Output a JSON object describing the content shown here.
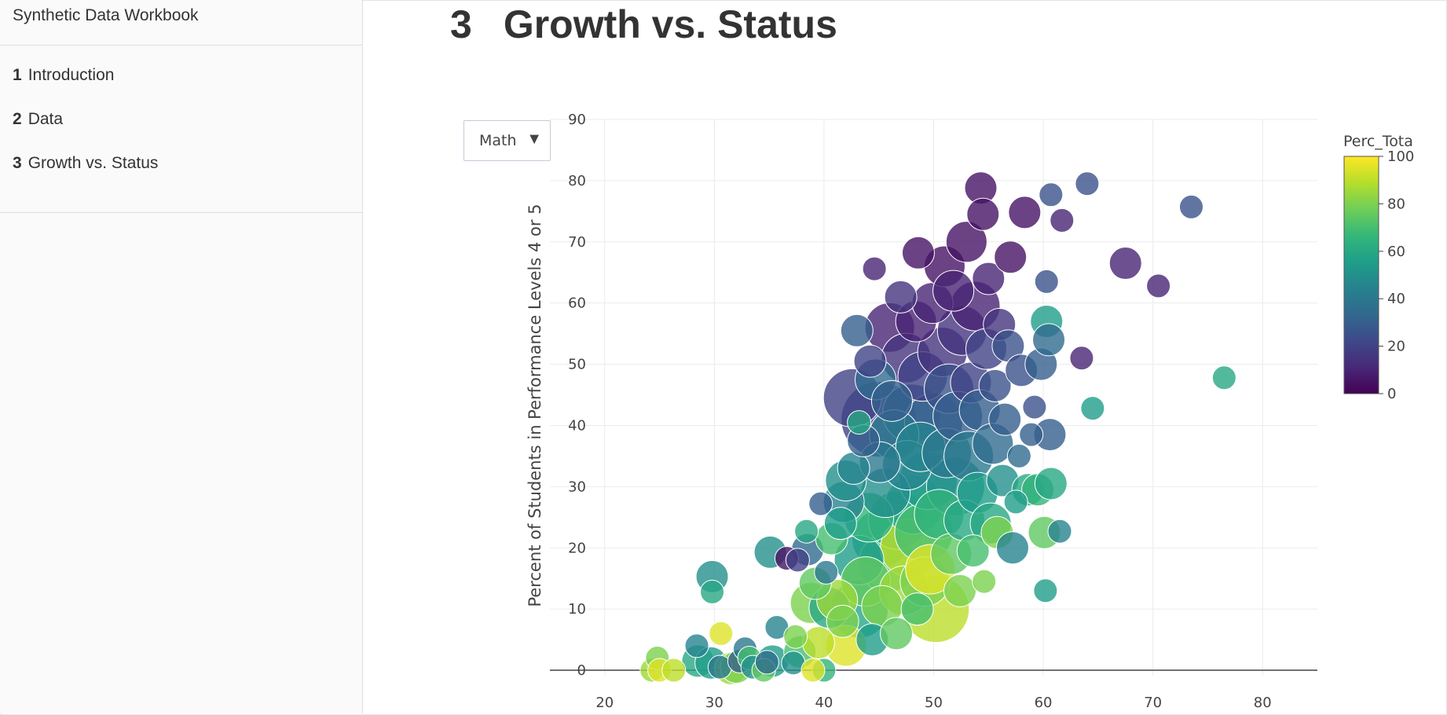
{
  "sidebar": {
    "title": "Synthetic Data Workbook",
    "items": [
      {
        "num": "1",
        "label": "Introduction"
      },
      {
        "num": "2",
        "label": "Data"
      },
      {
        "num": "3",
        "label": "Growth vs. Status"
      }
    ]
  },
  "page": {
    "number": "3",
    "title": "Growth vs. Status"
  },
  "dropdown": {
    "selected": "Math",
    "arrow": "▼"
  },
  "chart_data": {
    "type": "scatter",
    "title": "",
    "xlabel": "",
    "ylabel": "Percent of Students in Performance Levels 4 or 5",
    "xlim": [
      15,
      85
    ],
    "ylim": [
      -5,
      90
    ],
    "xticks": [
      20,
      30,
      40,
      50,
      60,
      70,
      80
    ],
    "yticks": [
      0,
      10,
      20,
      30,
      40,
      50,
      60,
      70,
      80,
      90
    ],
    "grid": true,
    "colorbar": {
      "title": "Perc_Tota",
      "range": [
        0,
        100
      ],
      "ticks": [
        0,
        20,
        40,
        60,
        80,
        100
      ],
      "colorscale": "Viridis"
    },
    "colorscale_stops": [
      "#440154",
      "#482878",
      "#3e4989",
      "#31688e",
      "#26828e",
      "#1f9e89",
      "#35b779",
      "#6ece58",
      "#b5de2b",
      "#fde725"
    ],
    "points": [
      [
        24.3,
        0,
        85,
        2
      ],
      [
        24.8,
        2,
        80,
        2
      ],
      [
        25,
        0,
        95,
        2
      ],
      [
        26.3,
        0,
        90,
        2
      ],
      [
        28.4,
        4,
        45,
        2
      ],
      [
        28.5,
        1.5,
        60,
        3
      ],
      [
        29.7,
        1.2,
        55,
        3
      ],
      [
        29.8,
        15.3,
        50,
        3
      ],
      [
        29.8,
        12.8,
        60,
        2
      ],
      [
        30.5,
        0.5,
        40,
        2
      ],
      [
        30.6,
        6,
        95,
        2
      ],
      [
        31.5,
        0.3,
        85,
        3
      ],
      [
        32,
        0.5,
        80,
        3
      ],
      [
        32.3,
        1.5,
        30,
        2
      ],
      [
        32.8,
        3.5,
        40,
        2
      ],
      [
        33.2,
        2,
        70,
        2
      ],
      [
        33.5,
        0.5,
        50,
        2
      ],
      [
        34.5,
        0,
        75,
        2
      ],
      [
        34.8,
        1.3,
        35,
        2
      ],
      [
        35.3,
        1.5,
        55,
        3
      ],
      [
        35.1,
        19.3,
        50,
        3
      ],
      [
        35.7,
        7,
        45,
        2
      ],
      [
        36.6,
        18.3,
        5,
        2
      ],
      [
        37.2,
        1.2,
        50,
        2
      ],
      [
        37.4,
        5.5,
        80,
        2
      ],
      [
        37.6,
        18,
        20,
        2
      ],
      [
        37.8,
        3,
        70,
        3
      ],
      [
        38.4,
        22.7,
        60,
        2
      ],
      [
        38.5,
        19.7,
        35,
        3
      ],
      [
        38.8,
        11,
        80,
        4
      ],
      [
        39.2,
        14.2,
        75,
        3
      ],
      [
        39.5,
        4.5,
        90,
        3
      ],
      [
        39.7,
        27.2,
        30,
        2
      ],
      [
        40,
        0,
        65,
        2
      ],
      [
        39,
        0,
        95,
        2
      ],
      [
        40.2,
        16,
        40,
        2
      ],
      [
        40.5,
        10.2,
        60,
        4
      ],
      [
        40.7,
        21.5,
        70,
        3
      ],
      [
        41.2,
        11.5,
        85,
        4
      ],
      [
        41.5,
        24,
        55,
        3
      ],
      [
        41.7,
        8,
        80,
        3
      ],
      [
        42.0,
        4,
        95,
        4
      ],
      [
        41.8,
        27.5,
        45,
        4
      ],
      [
        42,
        31,
        50,
        4
      ],
      [
        42.6,
        44.5,
        20,
        6
      ],
      [
        42.7,
        33,
        45,
        3
      ],
      [
        43,
        55.5,
        30,
        3
      ],
      [
        43.2,
        40.5,
        60,
        2
      ],
      [
        43.2,
        18,
        55,
        5
      ],
      [
        43.2,
        10,
        60,
        6
      ],
      [
        43.6,
        37.5,
        30,
        3
      ],
      [
        43.8,
        14.5,
        75,
        5
      ],
      [
        44.1,
        25,
        65,
        5
      ],
      [
        44.2,
        50.5,
        20,
        3
      ],
      [
        44.4,
        5,
        55,
        3
      ],
      [
        44.6,
        65.6,
        10,
        2
      ],
      [
        44.7,
        47.5,
        35,
        4
      ],
      [
        45.0,
        41,
        20,
        8
      ],
      [
        45.1,
        34,
        40,
        4
      ],
      [
        45.2,
        21.5,
        60,
        6
      ],
      [
        45.3,
        10.5,
        80,
        4
      ],
      [
        45.6,
        29,
        50,
        5
      ],
      [
        45.8,
        17.5,
        70,
        6
      ],
      [
        46.0,
        56,
        10,
        5
      ],
      [
        46.2,
        44,
        30,
        4
      ],
      [
        46.4,
        38.5,
        40,
        5
      ],
      [
        46.6,
        6,
        75,
        3
      ],
      [
        46.7,
        24.5,
        60,
        6
      ],
      [
        47.0,
        61,
        15,
        3
      ],
      [
        47.3,
        13,
        85,
        5
      ],
      [
        47.5,
        51,
        15,
        5
      ],
      [
        47.6,
        33.5,
        45,
        5
      ],
      [
        47.8,
        20,
        90,
        6
      ],
      [
        48.0,
        42,
        35,
        6
      ],
      [
        48.2,
        27,
        60,
        6
      ],
      [
        48.4,
        57,
        10,
        4
      ],
      [
        48.5,
        10,
        70,
        3
      ],
      [
        48.6,
        68.2,
        5,
        3
      ],
      [
        48.8,
        36.5,
        45,
        5
      ],
      [
        49.0,
        48,
        20,
        5
      ],
      [
        49.1,
        22.5,
        70,
        6
      ],
      [
        49.2,
        14.5,
        80,
        5
      ],
      [
        49.5,
        31,
        55,
        6
      ],
      [
        49.7,
        16.5,
        95,
        5
      ],
      [
        49.9,
        60,
        10,
        4
      ],
      [
        50.0,
        40.5,
        30,
        6
      ],
      [
        50.2,
        10,
        90,
        7
      ],
      [
        50.5,
        25.5,
        65,
        5
      ],
      [
        50.8,
        52,
        15,
        5
      ],
      [
        51.0,
        66,
        5,
        4
      ],
      [
        51.2,
        35.5,
        40,
        5
      ],
      [
        51.4,
        46,
        25,
        5
      ],
      [
        51.6,
        19,
        75,
        4
      ],
      [
        51.8,
        62,
        10,
        4
      ],
      [
        52.0,
        30,
        50,
        6
      ],
      [
        52.2,
        41.5,
        30,
        5
      ],
      [
        52.4,
        13,
        80,
        3
      ],
      [
        52.6,
        55.5,
        15,
        5
      ],
      [
        52.8,
        24.5,
        60,
        4
      ],
      [
        53.0,
        70,
        5,
        4
      ],
      [
        53.2,
        35,
        40,
        5
      ],
      [
        53.4,
        47,
        20,
        4
      ],
      [
        53.6,
        19.5,
        70,
        3
      ],
      [
        53.8,
        59.5,
        10,
        5
      ],
      [
        54.0,
        29,
        55,
        4
      ],
      [
        54.2,
        42.5,
        30,
        4
      ],
      [
        54.3,
        78.8,
        5,
        3
      ],
      [
        54.5,
        74.5,
        5,
        3
      ],
      [
        54.6,
        14.5,
        80,
        2
      ],
      [
        54.8,
        52.5,
        20,
        4
      ],
      [
        55.0,
        64,
        10,
        3
      ],
      [
        55.2,
        24,
        60,
        4
      ],
      [
        55.4,
        37,
        35,
        4
      ],
      [
        55.6,
        46.5,
        25,
        3
      ],
      [
        55.8,
        22.5,
        80,
        3
      ],
      [
        56.0,
        56.5,
        15,
        3
      ],
      [
        56.3,
        31,
        50,
        3
      ],
      [
        56.5,
        41,
        30,
        3
      ],
      [
        56.8,
        53,
        25,
        3
      ],
      [
        57.0,
        67.5,
        5,
        3
      ],
      [
        57.2,
        20,
        45,
        3
      ],
      [
        57.5,
        27.5,
        55,
        2
      ],
      [
        57.8,
        35,
        35,
        2
      ],
      [
        58.0,
        49,
        25,
        3
      ],
      [
        58.3,
        74.8,
        5,
        3
      ],
      [
        58.6,
        29.5,
        60,
        3
      ],
      [
        58.9,
        38.5,
        30,
        2
      ],
      [
        59.2,
        43,
        25,
        2
      ],
      [
        59.5,
        29.5,
        65,
        3
      ],
      [
        59.8,
        50,
        30,
        3
      ],
      [
        60.1,
        22.5,
        75,
        3
      ],
      [
        60.3,
        57,
        55,
        3
      ],
      [
        60.3,
        63.5,
        25,
        2
      ],
      [
        60.5,
        54,
        35,
        3
      ],
      [
        60.6,
        38.5,
        30,
        3
      ],
      [
        60.7,
        30.5,
        60,
        3
      ],
      [
        60.7,
        77.7,
        25,
        2
      ],
      [
        60.2,
        13,
        55,
        2
      ],
      [
        61.5,
        22.7,
        45,
        2
      ],
      [
        61.7,
        73.5,
        10,
        2
      ],
      [
        63.5,
        51,
        10,
        2
      ],
      [
        64,
        79.5,
        25,
        2
      ],
      [
        64.5,
        42.8,
        55,
        2
      ],
      [
        67.5,
        66.5,
        10,
        3
      ],
      [
        70.5,
        62.8,
        10,
        2
      ],
      [
        73.5,
        75.7,
        25,
        2
      ],
      [
        76.5,
        47.8,
        60,
        2
      ]
    ]
  }
}
